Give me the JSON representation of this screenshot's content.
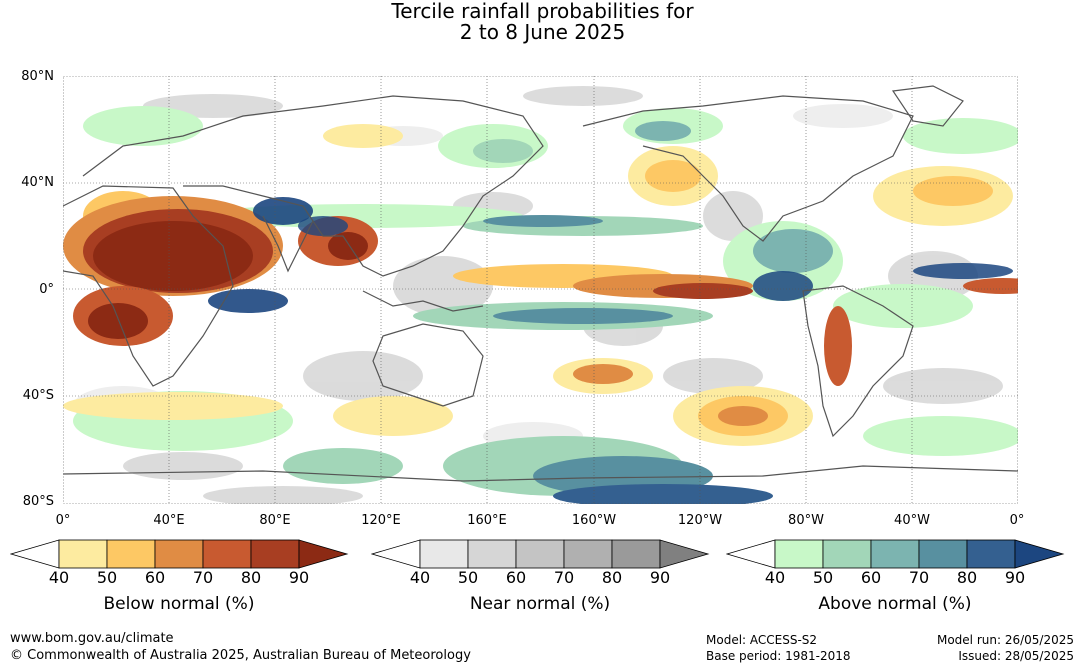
{
  "title": {
    "line1": "Tercile rainfall probabilities for",
    "line2": "2 to 8 June 2025"
  },
  "map": {
    "lat_labels": [
      "80°N",
      "40°N",
      "0°",
      "40°S",
      "80°S"
    ],
    "lon_labels": [
      "0°",
      "40°E",
      "80°E",
      "120°E",
      "160°E",
      "160°W",
      "120°W",
      "80°W",
      "40°W",
      "0°"
    ],
    "gridlines": true
  },
  "colorbars": [
    {
      "name": "Below normal (%)",
      "ticks": [
        "40",
        "50",
        "60",
        "70",
        "80",
        "90"
      ],
      "colors": [
        "#ffffff",
        "#fdeba0",
        "#fdc864",
        "#e08c44",
        "#c85a30",
        "#a83e22",
        "#8c2a14"
      ]
    },
    {
      "name": "Near normal (%)",
      "ticks": [
        "40",
        "50",
        "60",
        "70",
        "80",
        "90"
      ],
      "colors": [
        "#ffffff",
        "#e8e8e8",
        "#d6d6d6",
        "#c4c4c4",
        "#b0b0b0",
        "#9a9a9a",
        "#808080"
      ]
    },
    {
      "name": "Above normal (%)",
      "ticks": [
        "40",
        "50",
        "60",
        "70",
        "80",
        "90"
      ],
      "colors": [
        "#ffffff",
        "#c8f8c8",
        "#a2d6b8",
        "#7cb4b0",
        "#5890a0",
        "#346090",
        "#1c4680"
      ]
    }
  ],
  "footer": {
    "website": "www.bom.gov.au/climate",
    "copyright": "© Commonwealth of Australia 2025, Australian Bureau of Meteorology",
    "model": "Model: ACCESS-S2",
    "base_period": "Base period: 1981-2018",
    "model_run": "Model run: 26/05/2025",
    "issued": "Issued: 28/05/2025"
  }
}
